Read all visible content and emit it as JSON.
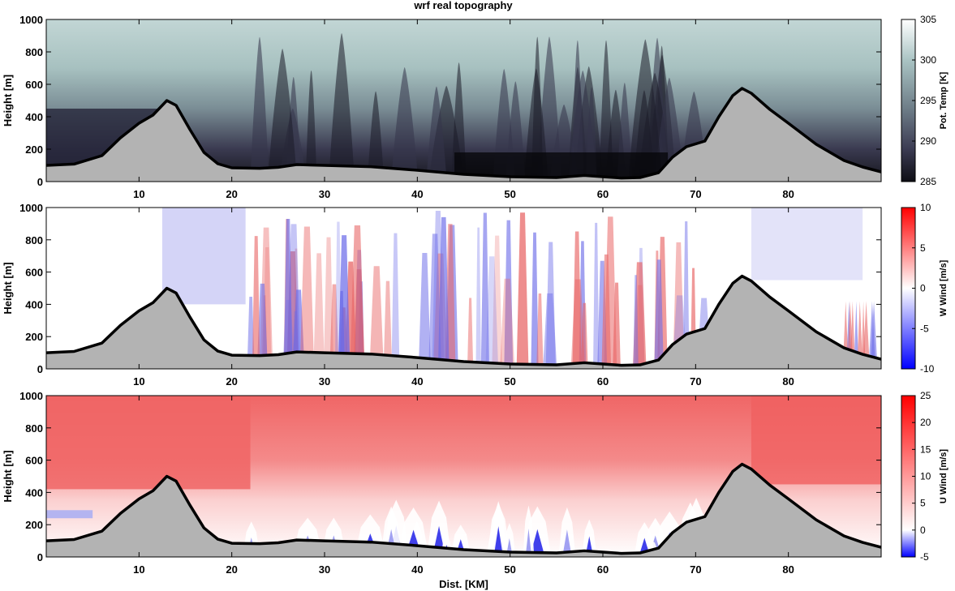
{
  "figure_title": "wrf real topography",
  "chart_data": [
    {
      "type": "heatmap",
      "variable": "potential temperature",
      "xlabel": "",
      "ylabel": "Height [m]",
      "xlim": [
        0,
        90
      ],
      "ylim": [
        0,
        1000
      ],
      "x_ticks": [
        10,
        20,
        30,
        40,
        50,
        60,
        70,
        80
      ],
      "y_ticks": [
        0,
        200,
        400,
        600,
        800,
        1000
      ],
      "colorbar": {
        "label": "Pot. Temp [K]",
        "range": [
          285,
          305
        ],
        "ticks": [
          285,
          290,
          295,
          300,
          305
        ],
        "colormap": "bone"
      },
      "terrain_color": "#b3b3b3",
      "grid": false
    },
    {
      "type": "heatmap",
      "variable": "vertical wind",
      "xlabel": "",
      "ylabel": "Height [m]",
      "xlim": [
        0,
        90
      ],
      "ylim": [
        0,
        1000
      ],
      "x_ticks": [
        10,
        20,
        30,
        40,
        50,
        60,
        70,
        80
      ],
      "y_ticks": [
        0,
        200,
        400,
        600,
        800,
        1000
      ],
      "colorbar": {
        "label": "W Wind [m/s]",
        "range": [
          -10,
          10
        ],
        "ticks": [
          -10,
          -5,
          0,
          5,
          10
        ],
        "colormap": "blue-white-red"
      },
      "terrain_color": "#b3b3b3",
      "grid": false
    },
    {
      "type": "heatmap",
      "variable": "horizontal wind",
      "xlabel": "Dist. [KM]",
      "ylabel": "Height [m]",
      "xlim": [
        0,
        90
      ],
      "ylim": [
        0,
        1000
      ],
      "x_ticks": [
        10,
        20,
        30,
        40,
        50,
        60,
        70,
        80
      ],
      "y_ticks": [
        0,
        200,
        400,
        600,
        800,
        1000
      ],
      "colorbar": {
        "label": "U Wind [m/s]",
        "range": [
          -5,
          25
        ],
        "ticks": [
          -5,
          0,
          5,
          10,
          15,
          20,
          25
        ],
        "colormap": "blue-white-red"
      },
      "terrain_color": "#b3b3b3",
      "grid": false
    }
  ],
  "terrain": {
    "x": [
      0,
      3,
      6,
      8,
      10,
      11.5,
      13,
      14,
      15.5,
      17,
      18.5,
      20,
      23,
      25,
      27,
      30,
      35,
      40,
      45,
      50,
      55,
      58,
      60,
      62,
      64,
      66,
      67.5,
      69,
      71,
      72.5,
      74,
      75,
      76,
      78,
      80,
      83,
      86,
      88,
      90
    ],
    "height": [
      100,
      108,
      160,
      270,
      360,
      410,
      500,
      470,
      320,
      180,
      110,
      85,
      82,
      88,
      105,
      100,
      92,
      70,
      45,
      30,
      25,
      38,
      30,
      22,
      25,
      55,
      150,
      215,
      250,
      400,
      530,
      575,
      545,
      445,
      360,
      230,
      130,
      90,
      60
    ]
  }
}
